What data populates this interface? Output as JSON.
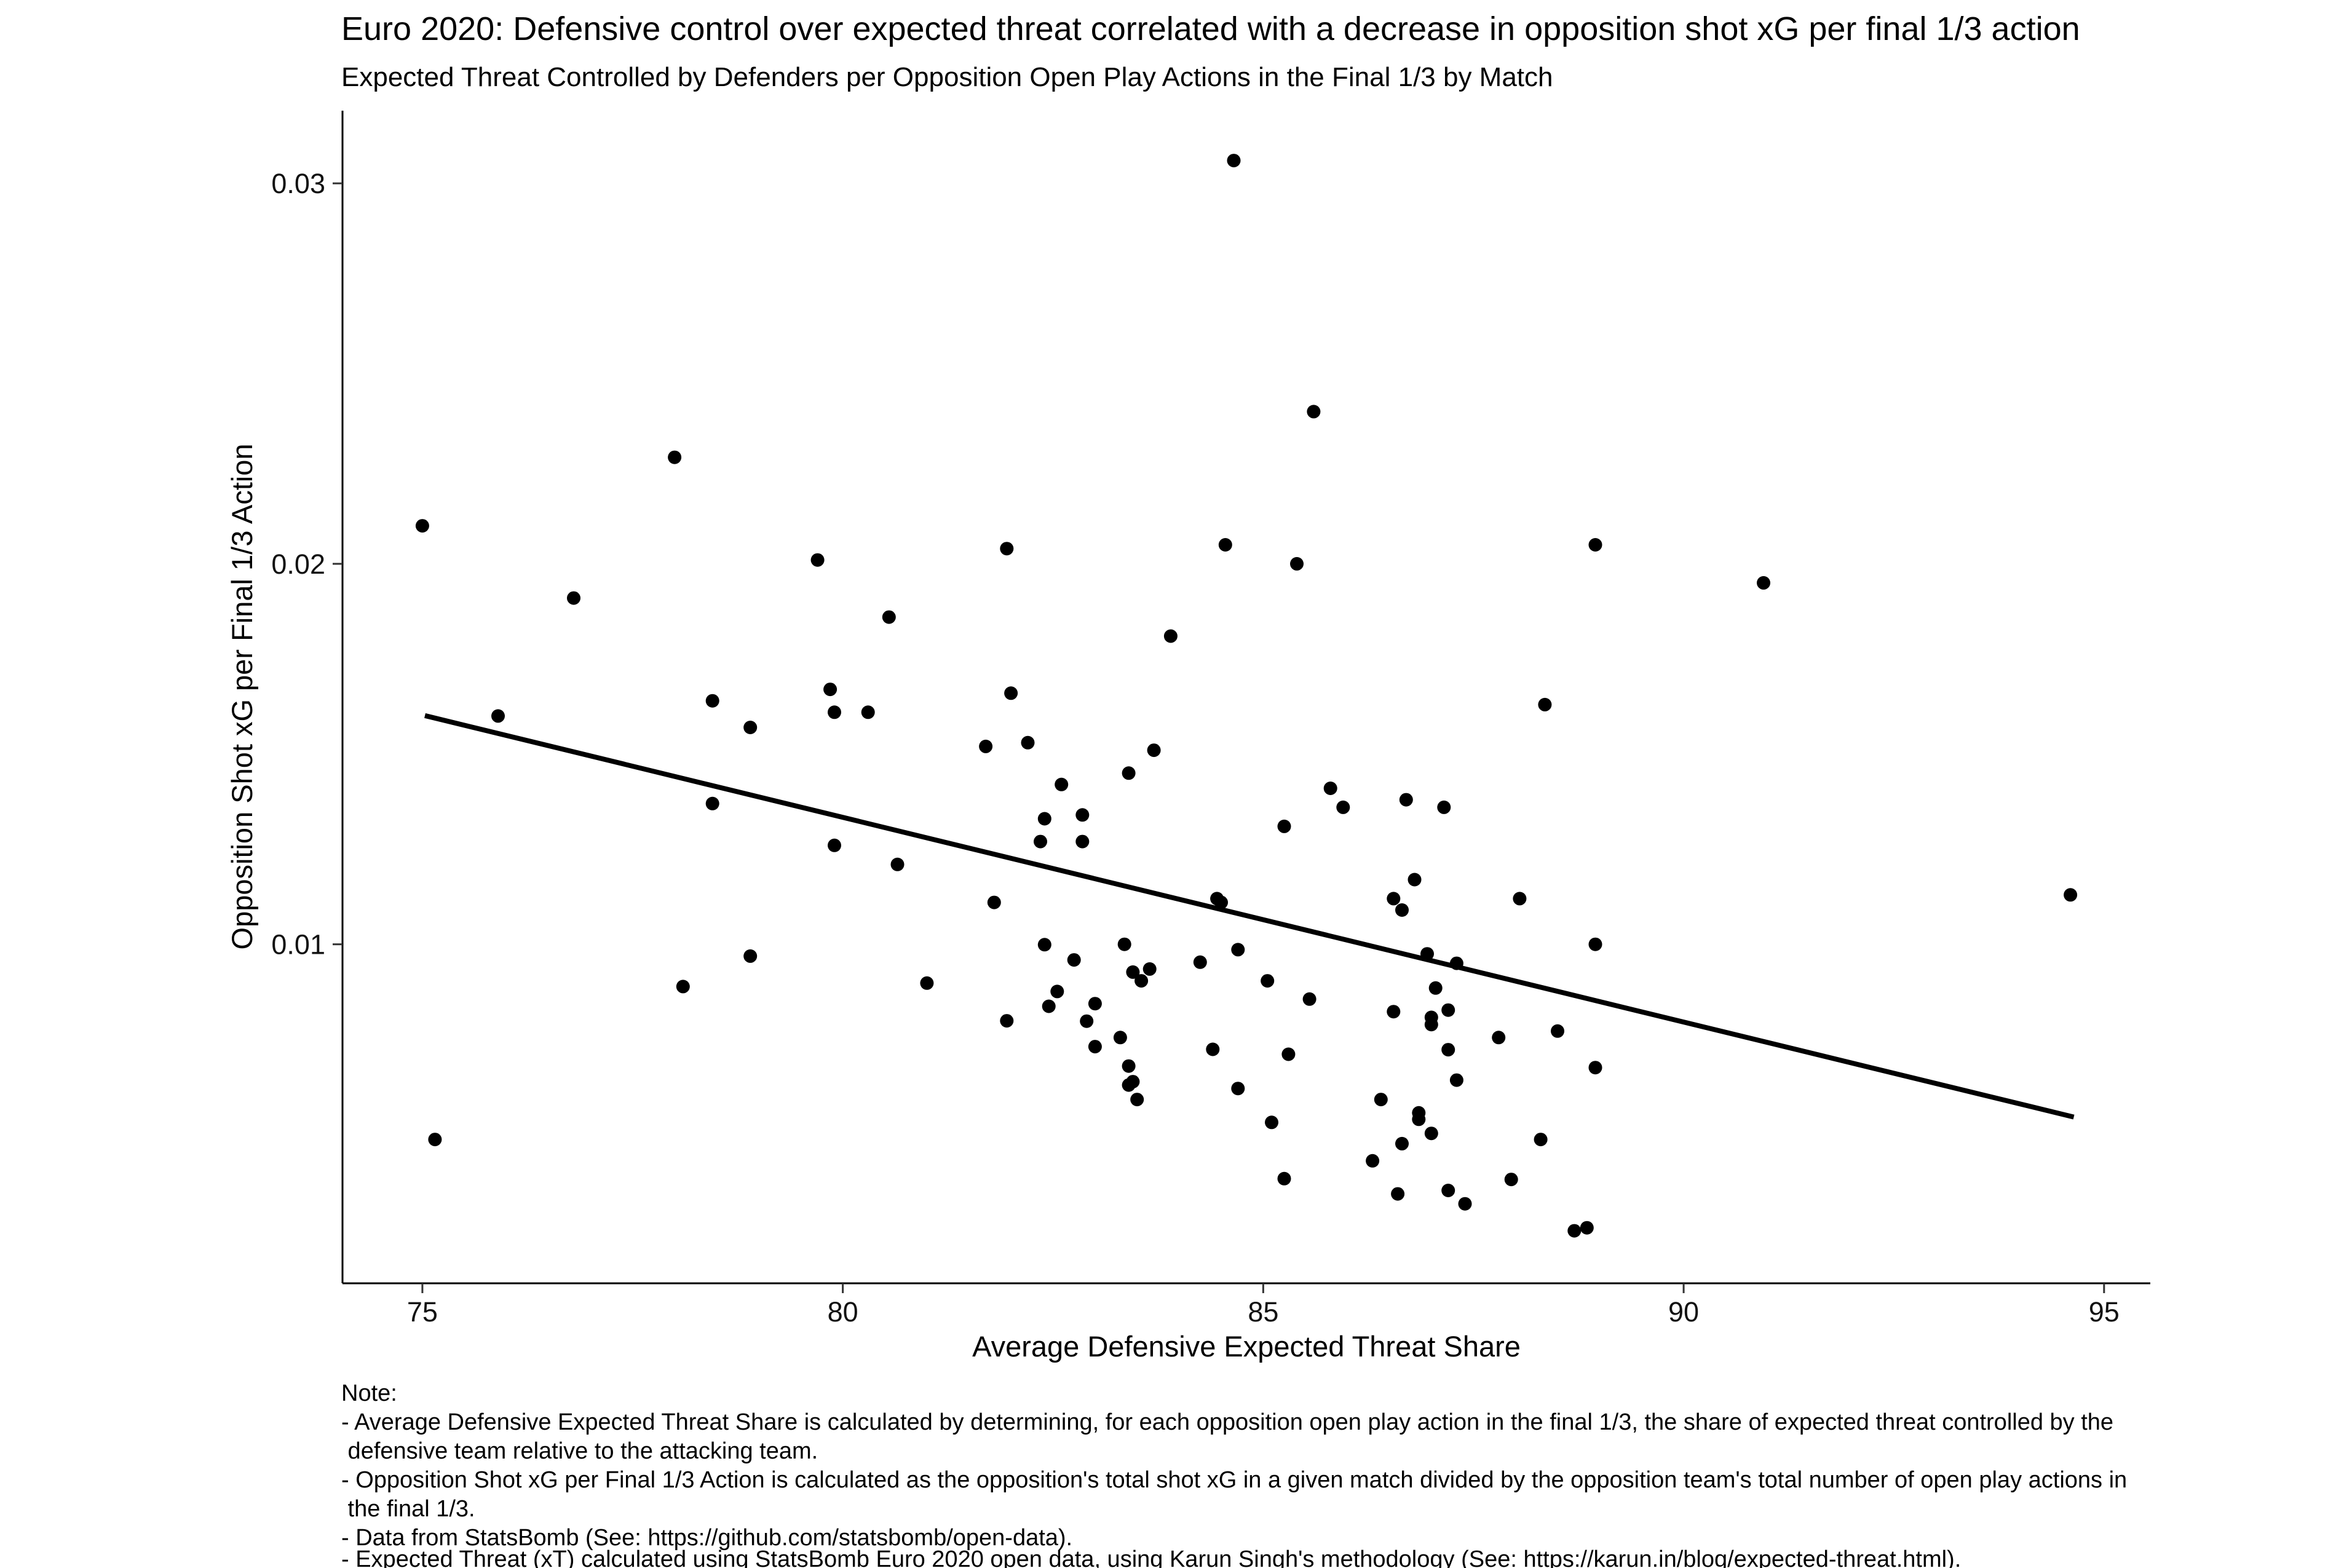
{
  "chart_data": {
    "type": "scatter",
    "title": "Euro 2020: Defensive control over expected threat correlated with a decrease in opposition shot xG per final 1/3 action",
    "subtitle": "Expected Threat Controlled by Defenders per Opposition Open Play Actions in the Final 1/3 by Match",
    "xlabel": "Average Defensive Expected Threat Share",
    "ylabel": "Opposition Shot xG per Final 1/3 Action",
    "xlim": [
      74.05,
      95.55
    ],
    "ylim": [
      0.00109,
      0.03191
    ],
    "x_ticks": [
      75,
      80,
      85,
      90,
      95
    ],
    "x_tick_labels": [
      "75",
      "80",
      "85",
      "90",
      "95"
    ],
    "y_ticks": [
      0.01,
      0.02,
      0.03
    ],
    "y_tick_labels": [
      "0.01",
      "0.02",
      "0.03"
    ],
    "grid": false,
    "legend": "none",
    "point_color": "#000000",
    "line_color": "#000000",
    "trend_line": {
      "x": [
        75.03,
        94.64
      ],
      "y": [
        0.01601,
        0.00546
      ]
    },
    "points": [
      [
        75.0,
        0.021
      ],
      [
        75.15,
        0.00487
      ],
      [
        75.9,
        0.016
      ],
      [
        76.8,
        0.0191
      ],
      [
        78.0,
        0.0228
      ],
      [
        78.1,
        0.00889
      ],
      [
        78.45,
        0.0164
      ],
      [
        78.45,
        0.0137
      ],
      [
        78.9,
        0.0157
      ],
      [
        78.9,
        0.00969
      ],
      [
        79.7,
        0.0201
      ],
      [
        79.85,
        0.0167
      ],
      [
        79.9,
        0.0161
      ],
      [
        79.9,
        0.0126
      ],
      [
        80.3,
        0.0161
      ],
      [
        80.55,
        0.0186
      ],
      [
        80.65,
        0.0121
      ],
      [
        81.0,
        0.00898
      ],
      [
        81.7,
        0.0152
      ],
      [
        81.8,
        0.0111
      ],
      [
        81.95,
        0.0204
      ],
      [
        82.0,
        0.0166
      ],
      [
        81.95,
        0.00799
      ],
      [
        82.2,
        0.0153
      ],
      [
        82.35,
        0.0127
      ],
      [
        82.4,
        0.0133
      ],
      [
        82.4,
        0.00999
      ],
      [
        82.45,
        0.00837
      ],
      [
        82.55,
        0.00876
      ],
      [
        82.6,
        0.0142
      ],
      [
        82.75,
        0.00959
      ],
      [
        82.85,
        0.0134
      ],
      [
        82.85,
        0.0127
      ],
      [
        82.9,
        0.00798
      ],
      [
        83.0,
        0.00731
      ],
      [
        83.0,
        0.00844
      ],
      [
        83.3,
        0.00755
      ],
      [
        83.35,
        0.01
      ],
      [
        83.4,
        0.0145
      ],
      [
        83.4,
        0.0068
      ],
      [
        83.4,
        0.0063
      ],
      [
        83.45,
        0.00927
      ],
      [
        83.45,
        0.00639
      ],
      [
        83.5,
        0.00592
      ],
      [
        83.55,
        0.00904
      ],
      [
        83.65,
        0.00935
      ],
      [
        83.7,
        0.0151
      ],
      [
        83.9,
        0.0181
      ],
      [
        84.25,
        0.00953
      ],
      [
        84.4,
        0.00724
      ],
      [
        84.45,
        0.0112
      ],
      [
        84.5,
        0.0111
      ],
      [
        84.55,
        0.0205
      ],
      [
        84.65,
        0.0306
      ],
      [
        84.7,
        0.00986
      ],
      [
        84.7,
        0.00621
      ],
      [
        85.05,
        0.00904
      ],
      [
        85.1,
        0.00532
      ],
      [
        85.25,
        0.00384
      ],
      [
        85.25,
        0.0131
      ],
      [
        85.3,
        0.00711
      ],
      [
        85.4,
        0.02
      ],
      [
        85.55,
        0.00856
      ],
      [
        85.6,
        0.024
      ],
      [
        85.8,
        0.0141
      ],
      [
        85.95,
        0.0136
      ],
      [
        86.3,
        0.00431
      ],
      [
        86.4,
        0.00592
      ],
      [
        86.55,
        0.0112
      ],
      [
        86.55,
        0.00823
      ],
      [
        86.6,
        0.00344
      ],
      [
        86.65,
        0.00476
      ],
      [
        86.65,
        0.0109
      ],
      [
        86.7,
        0.0138
      ],
      [
        86.8,
        0.0117
      ],
      [
        86.85,
        0.00557
      ],
      [
        86.85,
        0.0054
      ],
      [
        86.95,
        0.00975
      ],
      [
        87.0,
        0.00808
      ],
      [
        87.0,
        0.00789
      ],
      [
        87.0,
        0.00503
      ],
      [
        87.05,
        0.00885
      ],
      [
        87.15,
        0.0136
      ],
      [
        87.2,
        0.00827
      ],
      [
        87.2,
        0.00723
      ],
      [
        87.2,
        0.00353
      ],
      [
        87.3,
        0.0095
      ],
      [
        87.3,
        0.00643
      ],
      [
        87.4,
        0.00318
      ],
      [
        87.8,
        0.00755
      ],
      [
        87.95,
        0.00382
      ],
      [
        88.05,
        0.0112
      ],
      [
        88.3,
        0.00487
      ],
      [
        88.35,
        0.0163
      ],
      [
        88.5,
        0.00772
      ],
      [
        88.7,
        0.00247
      ],
      [
        88.85,
        0.00255
      ],
      [
        88.95,
        0.01
      ],
      [
        88.95,
        0.00676
      ],
      [
        88.95,
        0.0205
      ],
      [
        90.95,
        0.0195
      ],
      [
        94.6,
        0.0113
      ]
    ]
  },
  "notes": [
    "Note:",
    "- Average Defensive Expected Threat Share is calculated by determining, for each opposition open play action in the final 1/3, the share of expected threat controlled by the",
    " defensive team relative to the attacking team.",
    "- Opposition Shot xG per Final 1/3 Action is calculated as the opposition's total shot xG in a given match divided by the opposition team's total number of open play actions in",
    " the final 1/3.",
    "- Data from StatsBomb (See: https://github.com/statsbomb/open-data).",
    "- Expected Threat (xT) calculated using StatsBomb Euro 2020 open data, using Karun Singh's methodology (See: https://karun.in/blog/expected-threat.html)."
  ]
}
